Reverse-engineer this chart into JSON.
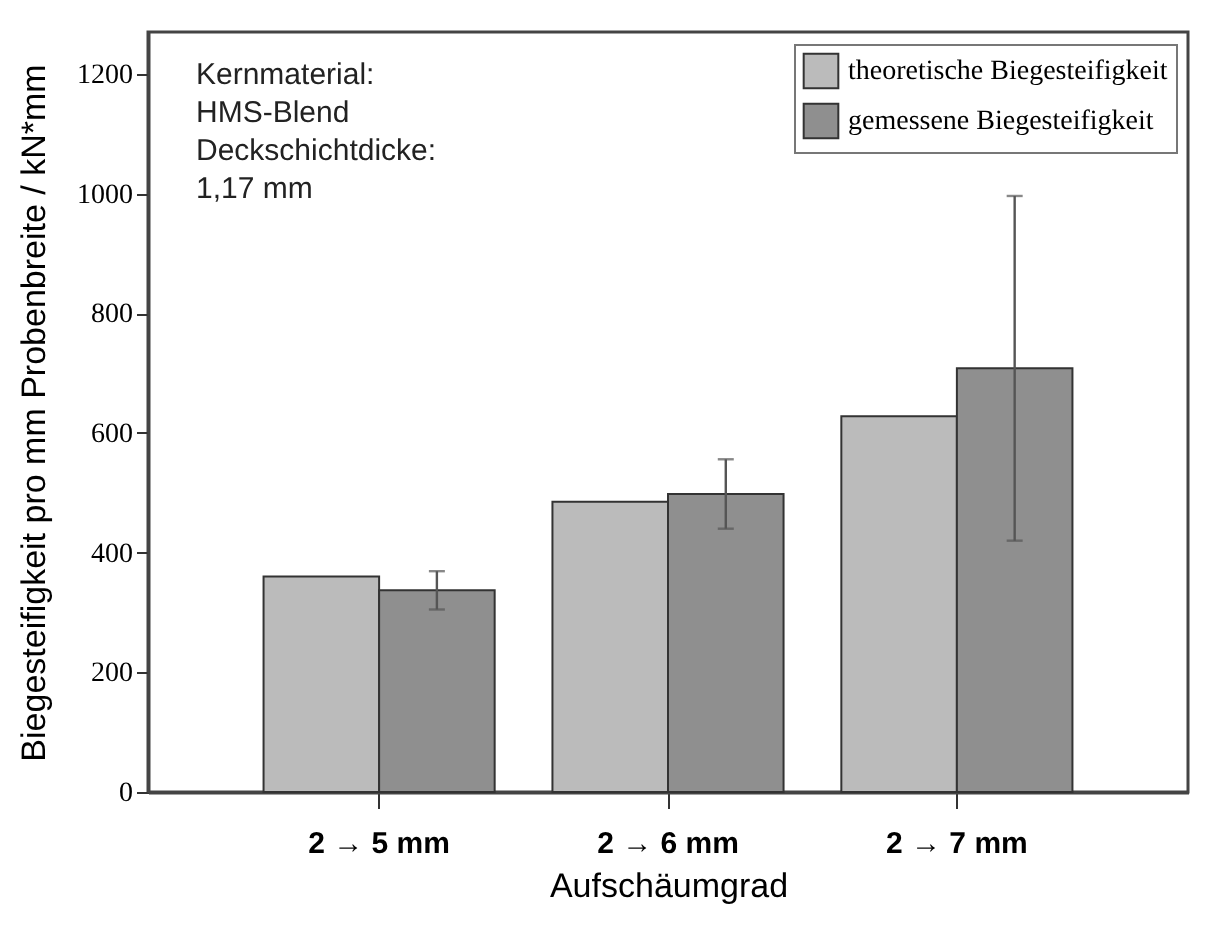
{
  "chart_data": {
    "type": "bar",
    "xlabel": "Aufschäumgrad",
    "ylabel": "Biegesteifigkeit pro mm Probenbreite / kN*mm",
    "categories": [
      "2 → 5 mm",
      "2 → 6 mm",
      "2 → 7 mm"
    ],
    "series": [
      {
        "name": "theoretische Biegesteifigkeit",
        "color": "#bbbbbb",
        "values": [
          360,
          485,
          628
        ]
      },
      {
        "name": "gemessene Biegesteifigkeit",
        "color": "#8f8f8f",
        "values": [
          337,
          498,
          708
        ],
        "errors": [
          32,
          58,
          288
        ]
      }
    ],
    "ylim": [
      0,
      1270
    ],
    "yticks": [
      0,
      200,
      400,
      600,
      800,
      1000,
      1200
    ],
    "grid": false,
    "legend": "top right",
    "annotations": [
      "Kernmaterial:",
      "HMS-Blend",
      "Deckschichtdicke:",
      "1,17 mm"
    ]
  }
}
